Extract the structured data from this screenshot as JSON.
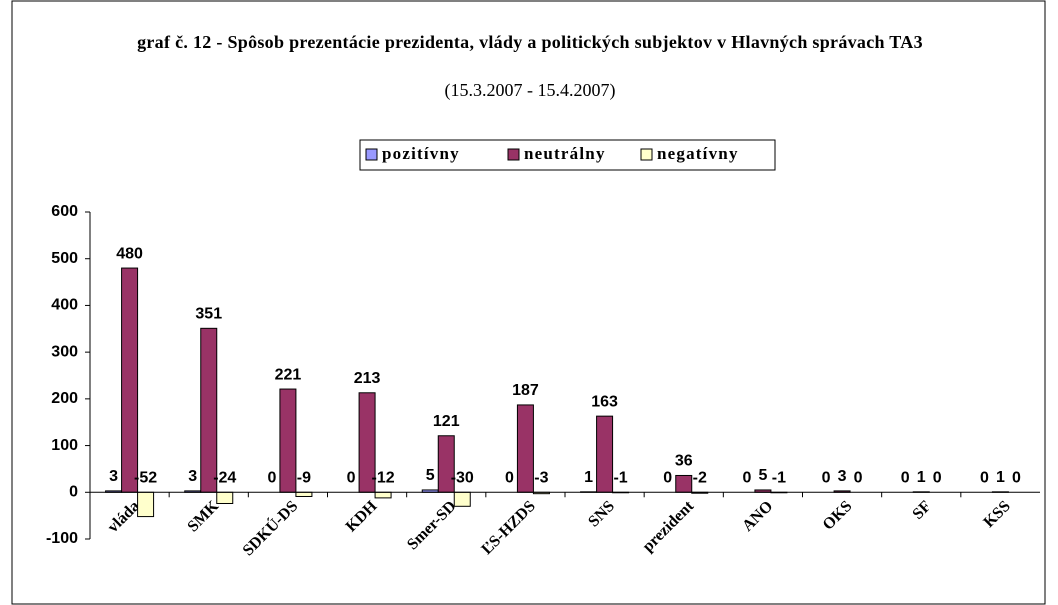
{
  "chart_data": {
    "type": "bar",
    "title": "graf č. 12 - Spôsob prezentácie prezidenta, vlády a politických subjektov v Hlavných správach TA3",
    "subtitle": "(15.3.2007 - 15.4.2007)",
    "categories": [
      "vláda",
      "SMK",
      "SDKÚ-DS",
      "KDH",
      "Smer-SD",
      "ĽS-HZDS",
      "SNS",
      "prezident",
      "ANO",
      "OKS",
      "SF",
      "KSS"
    ],
    "series": [
      {
        "name": "pozitívny",
        "color": "#9999ff",
        "values": [
          3,
          3,
          0,
          0,
          5,
          0,
          1,
          0,
          0,
          0,
          0,
          0
        ]
      },
      {
        "name": "neutrálny",
        "color": "#993366",
        "values": [
          480,
          351,
          221,
          213,
          121,
          187,
          163,
          36,
          5,
          3,
          1,
          1
        ]
      },
      {
        "name": "negatívny",
        "color": "#ffffcc",
        "values": [
          -52,
          -24,
          -9,
          -12,
          -30,
          -3,
          -1,
          -2,
          -1,
          0,
          0,
          0
        ]
      }
    ],
    "ylim": [
      -100,
      600
    ],
    "yticks": [
      -100,
      0,
      100,
      200,
      300,
      400,
      500,
      600
    ],
    "grid": false,
    "legend": "top"
  }
}
